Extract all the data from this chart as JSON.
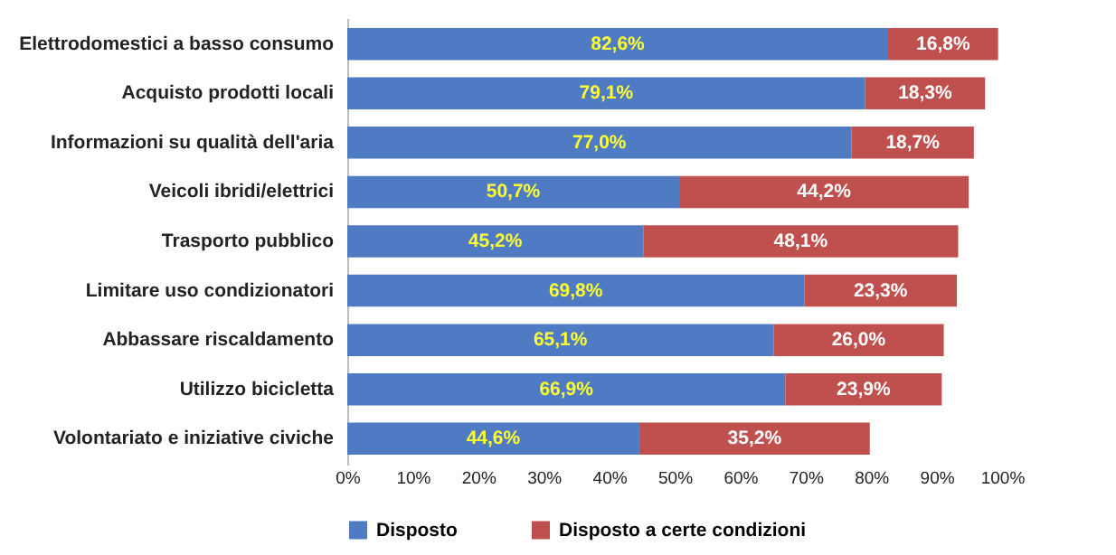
{
  "chart_data": {
    "type": "bar",
    "orientation": "horizontal",
    "stacked": true,
    "categories": [
      "Elettrodomestici a basso consumo",
      "Acquisto prodotti locali",
      "Informazioni su qualità dell'aria",
      "Veicoli ibridi/elettrici",
      "Trasporto pubblico",
      "Limitare uso condizionatori",
      "Abbassare riscaldamento",
      "Utilizzo bicicletta",
      "Volontariato e iniziative civiche"
    ],
    "series": [
      {
        "name": "Disposto",
        "color": "#4f7bc4",
        "values": [
          82.6,
          79.1,
          77.0,
          50.7,
          45.2,
          69.8,
          65.1,
          66.9,
          44.6
        ],
        "value_labels": [
          "82,6%",
          "79,1%",
          "77,0%",
          "50,7%",
          "45,2%",
          "69,8%",
          "65,1%",
          "66,9%",
          "44,6%"
        ]
      },
      {
        "name": "Disposto a certe condizioni",
        "color": "#c0504d",
        "values": [
          16.8,
          18.3,
          18.7,
          44.2,
          48.1,
          23.3,
          26.0,
          23.9,
          35.2
        ],
        "value_labels": [
          "16,8%",
          "18,3%",
          "18,7%",
          "44,2%",
          "48,1%",
          "23,3%",
          "26,0%",
          "23,9%",
          "35,2%"
        ]
      }
    ],
    "xlim": [
      0,
      100
    ],
    "xticks": [
      {
        "value": 0,
        "label": "0%"
      },
      {
        "value": 10,
        "label": "10%"
      },
      {
        "value": 20,
        "label": "20%"
      },
      {
        "value": 30,
        "label": "30%"
      },
      {
        "value": 40,
        "label": "40%"
      },
      {
        "value": 50,
        "label": "50%"
      },
      {
        "value": 60,
        "label": "60%"
      },
      {
        "value": 70,
        "label": "70%"
      },
      {
        "value": 80,
        "label": "80%"
      },
      {
        "value": 90,
        "label": "90%"
      },
      {
        "value": 100,
        "label": "100%"
      }
    ],
    "grid": false,
    "legend": "bottom"
  }
}
